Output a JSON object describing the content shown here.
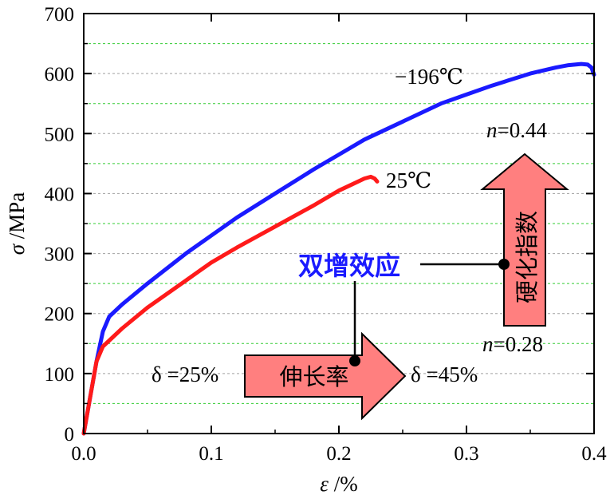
{
  "chart_data": {
    "type": "line",
    "xlabel_symbol": "ε",
    "xlabel_unit": " /%",
    "ylabel_symbol": "σ",
    "ylabel_unit": " /MPa",
    "xlim": [
      0.0,
      0.4
    ],
    "ylim": [
      0,
      700
    ],
    "x_ticks": [
      0.0,
      0.1,
      0.2,
      0.3,
      0.4
    ],
    "x_tick_labels": [
      "0.0",
      "0.1",
      "0.2",
      "0.3",
      "0.4"
    ],
    "y_ticks": [
      0,
      100,
      200,
      300,
      400,
      500,
      600,
      700
    ],
    "y_tick_labels": [
      "0",
      "100",
      "200",
      "300",
      "400",
      "500",
      "600",
      "700"
    ],
    "grid": true,
    "series": [
      {
        "name": "−196℃",
        "color": "#1a1aff",
        "x": [
          0.0,
          0.005,
          0.01,
          0.015,
          0.02,
          0.025,
          0.03,
          0.05,
          0.08,
          0.1,
          0.12,
          0.15,
          0.18,
          0.2,
          0.22,
          0.25,
          0.28,
          0.3,
          0.32,
          0.35,
          0.37,
          0.38,
          0.39,
          0.395,
          0.398,
          0.4
        ],
        "y": [
          0,
          60,
          120,
          170,
          195,
          205,
          215,
          250,
          300,
          330,
          360,
          400,
          440,
          465,
          490,
          520,
          550,
          565,
          580,
          600,
          610,
          614,
          616,
          615,
          610,
          598
        ]
      },
      {
        "name": "25℃",
        "color": "#ff1a1a",
        "x": [
          0.0,
          0.005,
          0.01,
          0.015,
          0.02,
          0.03,
          0.05,
          0.08,
          0.1,
          0.12,
          0.15,
          0.18,
          0.2,
          0.21,
          0.22,
          0.225,
          0.228,
          0.23
        ],
        "y": [
          0,
          60,
          120,
          145,
          155,
          175,
          210,
          255,
          285,
          310,
          345,
          380,
          405,
          415,
          425,
          428,
          425,
          420
        ]
      }
    ],
    "annotations": {
      "center_label": "双增效应",
      "hardening_arrow_label": "硬化指数",
      "n_high_label": "n",
      "n_high_value": "=0.44",
      "n_low_label": "n",
      "n_low_value": "=0.28",
      "elongation_arrow_label": "伸长率",
      "delta_low": "δ =25%",
      "delta_high": "δ =45%"
    },
    "colors": {
      "arrow_fill": "#ff7f7f",
      "arrow_stroke": "#000000",
      "center_label": "#1a1aff",
      "grid": "#33cc33"
    }
  }
}
